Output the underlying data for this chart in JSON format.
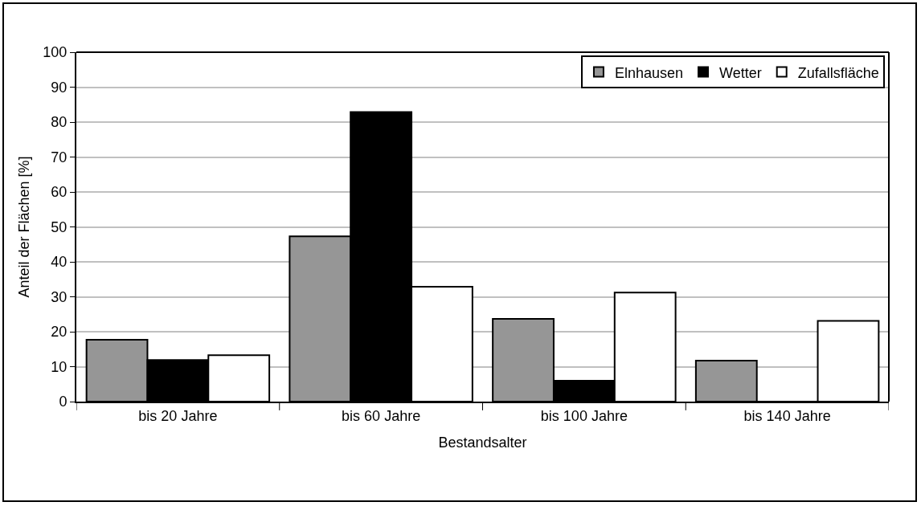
{
  "chart_data": {
    "type": "bar",
    "xlabel": "Bestandsalter",
    "ylabel": "Anteil der Flächen [%]",
    "categories": [
      "bis 20 Jahre",
      "bis 60 Jahre",
      "bis 100 Jahre",
      "bis 140 Jahre"
    ],
    "series": [
      {
        "name": "Elnhausen",
        "color": "#969696",
        "values": [
          17.7,
          47.3,
          23.7,
          11.7
        ]
      },
      {
        "name": "Wetter",
        "color": "#000000",
        "values": [
          11.9,
          82.9,
          6.0,
          0
        ]
      },
      {
        "name": "Zufallsfläche",
        "color": "#ffffff",
        "values": [
          13.3,
          32.9,
          31.2,
          23.1
        ]
      }
    ],
    "ylim": [
      0,
      100
    ],
    "yticks": [
      0,
      10,
      20,
      30,
      40,
      50,
      60,
      70,
      80,
      90,
      100
    ],
    "grid": "y",
    "legend": "top right"
  }
}
